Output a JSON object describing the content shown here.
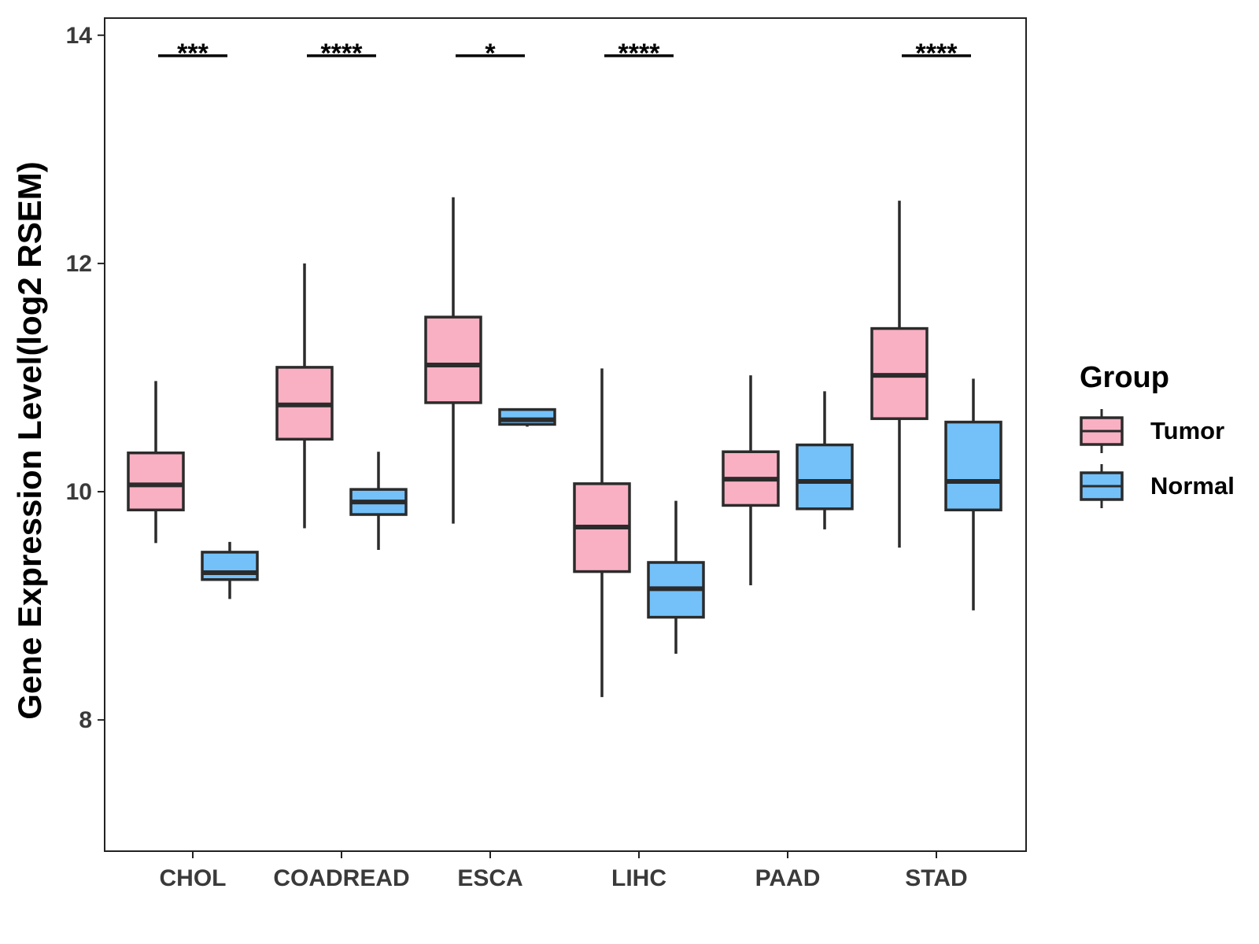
{
  "chart_data": {
    "type": "boxplot",
    "title": "",
    "xlabel": "",
    "ylabel": "Gene Expression Level(log2 RSEM)",
    "ylim": [
      6.85,
      14.15
    ],
    "yticks": [
      "8",
      "10",
      "12",
      "14"
    ],
    "categories": [
      "CHOL",
      "COADREAD",
      "ESCA",
      "LIHC",
      "PAAD",
      "STAD"
    ],
    "legend": {
      "title": "Group",
      "position": "right",
      "entries": [
        "Tumor",
        "Normal"
      ]
    },
    "colors": {
      "Tumor": "#F9B0C3",
      "Normal": "#74C1F9",
      "stroke": "#2b2b2b"
    },
    "series": [
      {
        "name": "Tumor",
        "boxes": [
          {
            "min": 9.55,
            "q1": 9.84,
            "median": 10.06,
            "q3": 10.34,
            "max": 10.97
          },
          {
            "min": 9.68,
            "q1": 10.46,
            "median": 10.76,
            "q3": 11.09,
            "max": 12.0
          },
          {
            "min": 9.72,
            "q1": 10.78,
            "median": 11.11,
            "q3": 11.53,
            "max": 12.58
          },
          {
            "min": 8.2,
            "q1": 9.3,
            "median": 9.69,
            "q3": 10.07,
            "max": 11.08
          },
          {
            "min": 9.18,
            "q1": 9.88,
            "median": 10.11,
            "q3": 10.35,
            "max": 11.02
          },
          {
            "min": 9.51,
            "q1": 10.64,
            "median": 11.02,
            "q3": 11.43,
            "max": 12.55
          }
        ]
      },
      {
        "name": "Normal",
        "boxes": [
          {
            "min": 9.06,
            "q1": 9.23,
            "median": 9.29,
            "q3": 9.47,
            "max": 9.56
          },
          {
            "min": 9.49,
            "q1": 9.8,
            "median": 9.91,
            "q3": 10.02,
            "max": 10.35
          },
          {
            "min": 10.57,
            "q1": 10.59,
            "median": 10.63,
            "q3": 10.72,
            "max": 10.73
          },
          {
            "min": 8.58,
            "q1": 8.9,
            "median": 9.15,
            "q3": 9.38,
            "max": 9.92
          },
          {
            "min": 9.67,
            "q1": 9.85,
            "median": 10.09,
            "q3": 10.41,
            "max": 10.88
          },
          {
            "min": 8.96,
            "q1": 9.84,
            "median": 10.09,
            "q3": 10.61,
            "max": 10.99
          }
        ]
      }
    ],
    "significance": [
      "***",
      "****",
      "*",
      "****",
      "",
      "****"
    ],
    "significance_level": 13.82,
    "grid": false
  }
}
